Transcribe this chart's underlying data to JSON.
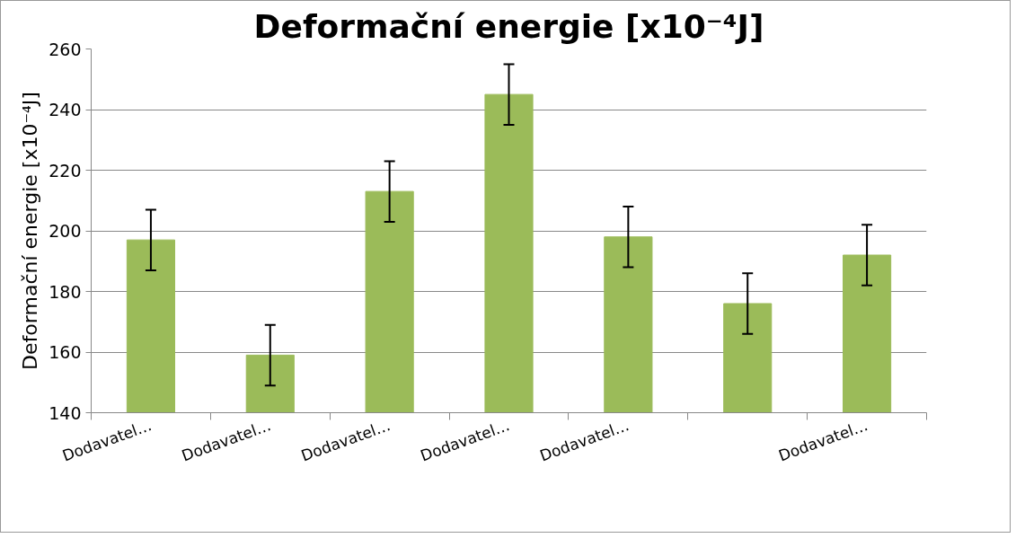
{
  "chart_data": {
    "type": "bar",
    "title": "Deformační energie [x10⁻⁴J]",
    "ylabel": "Deformační energie [x10⁻⁴J]",
    "categories": [
      "Dodavatel…",
      "Dodavatel…",
      "Dodavatel…",
      "Dodavatel…",
      "Dodavatel…",
      null,
      "Dodavatel…"
    ],
    "values": [
      197,
      159,
      213,
      245,
      198,
      176,
      192
    ],
    "errors": [
      10,
      10,
      10,
      10,
      10,
      10,
      10
    ],
    "color": "#9bbb59",
    "ylim": [
      140,
      260
    ],
    "yticks": [
      140,
      160,
      180,
      200,
      220,
      240,
      260
    ],
    "grid": "y"
  }
}
